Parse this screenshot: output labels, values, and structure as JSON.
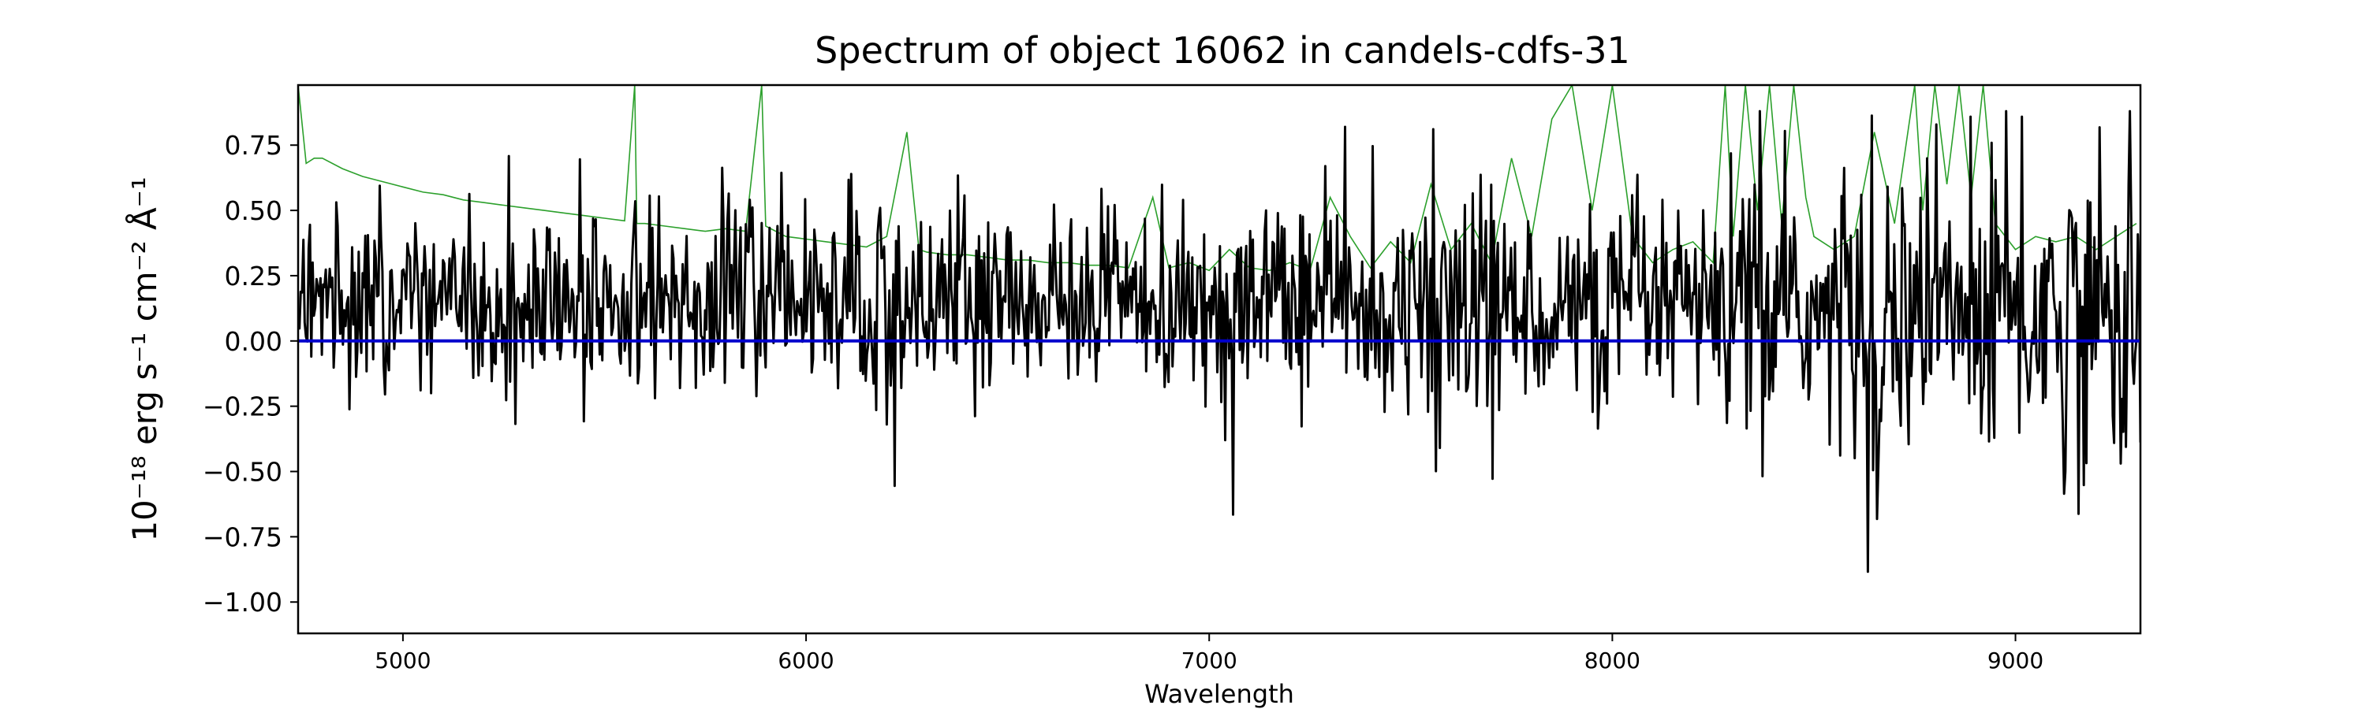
{
  "chart_data": {
    "type": "line",
    "title": "Spectrum of object 16062 in candels-cdfs-31",
    "xlabel": "Wavelength",
    "ylabel": "10⁻¹⁸ erg s⁻¹ cm⁻² Å⁻¹",
    "xlim": [
      4740,
      9310
    ],
    "ylim": [
      -1.12,
      0.98
    ],
    "xticks": [
      5000,
      6000,
      7000,
      8000,
      9000
    ],
    "yticks": [
      0.75,
      0.5,
      0.25,
      0.0,
      -0.25,
      -0.5,
      -0.75,
      -1.0
    ],
    "ytick_labels": [
      "0.75",
      "0.50",
      "0.25",
      "0.00",
      "−0.25",
      "−0.50",
      "−0.75",
      "−1.00"
    ],
    "grid": false,
    "series": [
      {
        "color": "#2ca02c",
        "x": [
          4740,
          4760,
          4780,
          4800,
          4850,
          4900,
          4950,
          5000,
          5050,
          5100,
          5150,
          5200,
          5250,
          5300,
          5350,
          5400,
          5450,
          5500,
          5550,
          5575,
          5580,
          5600,
          5650,
          5700,
          5750,
          5800,
          5850,
          5890,
          5900,
          5950,
          6000,
          6050,
          6100,
          6150,
          6200,
          6250,
          6280,
          6300,
          6350,
          6400,
          6450,
          6500,
          6550,
          6600,
          6650,
          6700,
          6750,
          6800,
          6860,
          6900,
          6950,
          7000,
          7050,
          7100,
          7150,
          7200,
          7250,
          7300,
          7350,
          7400,
          7450,
          7500,
          7550,
          7600,
          7650,
          7700,
          7750,
          7800,
          7850,
          7900,
          7950,
          8000,
          8050,
          8100,
          8150,
          8200,
          8250,
          8280,
          8300,
          8330,
          8360,
          8390,
          8420,
          8450,
          8480,
          8500,
          8550,
          8600,
          8650,
          8700,
          8750,
          8770,
          8800,
          8830,
          8860,
          8890,
          8920,
          8950,
          9000,
          9050,
          9100,
          9150,
          9200,
          9250,
          9300
        ],
        "values": [
          0.98,
          0.68,
          0.7,
          0.7,
          0.66,
          0.63,
          0.61,
          0.59,
          0.57,
          0.56,
          0.54,
          0.53,
          0.52,
          0.51,
          0.5,
          0.49,
          0.48,
          0.47,
          0.46,
          0.98,
          0.45,
          0.45,
          0.44,
          0.43,
          0.42,
          0.43,
          0.42,
          0.98,
          0.44,
          0.4,
          0.39,
          0.38,
          0.37,
          0.36,
          0.4,
          0.8,
          0.35,
          0.34,
          0.33,
          0.33,
          0.32,
          0.31,
          0.31,
          0.3,
          0.3,
          0.29,
          0.29,
          0.28,
          0.55,
          0.28,
          0.3,
          0.27,
          0.35,
          0.28,
          0.27,
          0.3,
          0.27,
          0.55,
          0.4,
          0.28,
          0.38,
          0.3,
          0.6,
          0.35,
          0.45,
          0.3,
          0.7,
          0.4,
          0.85,
          0.98,
          0.5,
          0.98,
          0.4,
          0.3,
          0.35,
          0.38,
          0.3,
          0.98,
          0.4,
          0.98,
          0.5,
          0.98,
          0.45,
          0.98,
          0.55,
          0.4,
          0.35,
          0.4,
          0.8,
          0.45,
          0.98,
          0.5,
          0.98,
          0.6,
          0.98,
          0.55,
          0.98,
          0.45,
          0.35,
          0.4,
          0.38,
          0.4,
          0.35,
          0.4,
          0.45
        ]
      },
      {
        "color": "#000000",
        "x_range": [
          4740,
          9310
        ],
        "seed": 16062
      },
      {
        "color": "#0000cc",
        "x": [
          4740,
          9310
        ],
        "values": [
          0,
          0
        ]
      }
    ]
  }
}
